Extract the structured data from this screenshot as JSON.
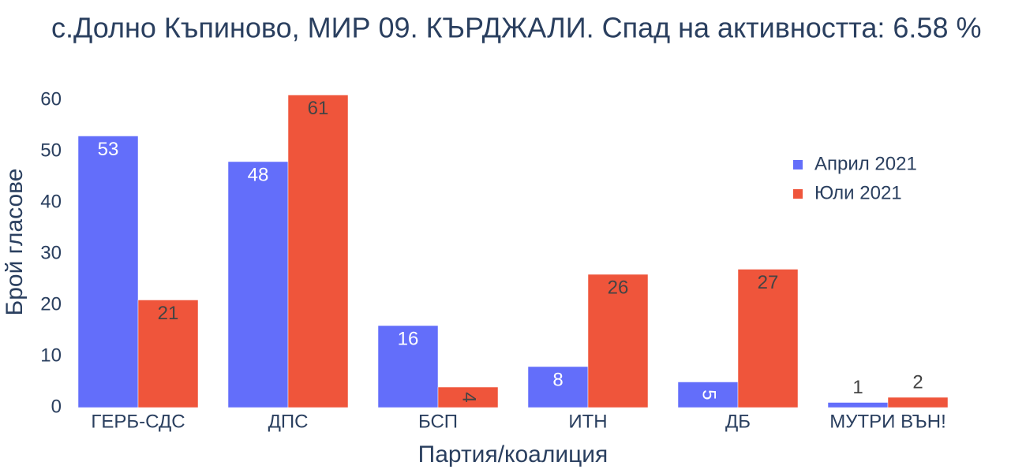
{
  "chart_data": {
    "type": "bar",
    "title": "с.Долно Къпиново, МИР 09. КЪРДЖАЛИ. Спад на активността: 6.58  %",
    "x_label": "Партия/коалиция",
    "y_label": "Брой гласове",
    "categories": [
      "ГЕРБ-СДС",
      "ДПС",
      "БСП",
      "ИТН",
      "ДБ",
      "МУТРИ ВЪН!"
    ],
    "series": [
      {
        "name": "Април 2021",
        "color": "#636efa",
        "values": [
          53,
          48,
          16,
          8,
          5,
          1
        ]
      },
      {
        "name": "Юли 2021",
        "color": "#ef553b",
        "values": [
          21,
          61,
          4,
          26,
          27,
          2
        ]
      }
    ],
    "ylim": [
      0,
      64
    ],
    "yticks": [
      0,
      10,
      20,
      30,
      40,
      50,
      60
    ],
    "legend": "top right"
  }
}
